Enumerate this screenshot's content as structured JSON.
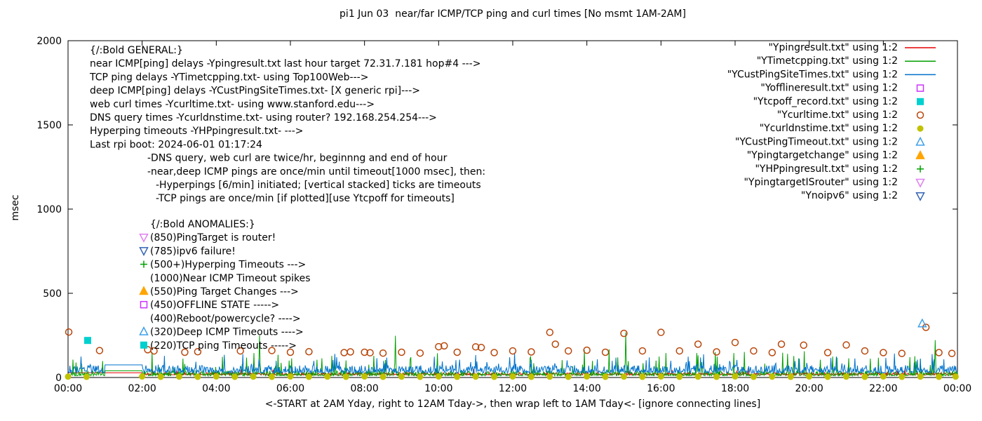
{
  "chart_data": {
    "type": "line",
    "title": "pi1 Jun 03  near/far ICMP/TCP ping and curl times [No msmt 1AM-2AM]",
    "xlabel": "<-START at 2AM Yday, right to 12AM Tday->, then wrap left to 1AM Tday<- [ignore connecting lines]",
    "ylabel": "msec",
    "ylim": [
      0,
      2000
    ],
    "y_ticks": [
      0,
      500,
      1000,
      1500,
      2000
    ],
    "x_tick_labels": [
      "00:00",
      "02:00",
      "04:00",
      "06:00",
      "08:00",
      "10:00",
      "12:00",
      "14:00",
      "16:00",
      "18:00",
      "20:00",
      "22:00",
      "00:00"
    ],
    "x_range_hours": [
      0,
      24
    ],
    "grid": false,
    "gap_hours": [
      1,
      2
    ],
    "line_series": [
      {
        "name": "Ypingresult",
        "color": "#e60000",
        "seed": 11,
        "base": 15,
        "noise": 15,
        "spike_p": 0.015,
        "spike_amp": 35,
        "gap_value": 28,
        "flat_until": 2,
        "spikes": []
      },
      {
        "name": "YTimetcpping",
        "color": "#00a000",
        "seed": 22,
        "base": 10,
        "noise": 30,
        "spike_p": 0.05,
        "spike_amp": 130,
        "gap_value": 40,
        "spikes": [
          [
            5.17,
            250
          ],
          [
            8.83,
            248
          ],
          [
            15.05,
            268
          ],
          [
            23.4,
            222
          ]
        ]
      },
      {
        "name": "YCustPingSiteTimes",
        "color": "#0072cc",
        "seed": 33,
        "base": 28,
        "noise": 45,
        "spike_p": 0.06,
        "spike_amp": 75,
        "gap_value": 75,
        "spikes": [
          [
            7.2,
            140
          ],
          [
            12.05,
            148
          ],
          [
            22.3,
            142
          ]
        ]
      }
    ],
    "point_series": [
      {
        "name": "Yofflineresult",
        "marker": "square-open",
        "color": "#cc33ff",
        "points": []
      },
      {
        "name": "Ytcpoff_record",
        "marker": "square-filled",
        "color": "#00d0d0",
        "points": [
          [
            0.53,
            220
          ]
        ]
      },
      {
        "name": "Ycurltime",
        "marker": "circle-open",
        "color": "#b8470b",
        "points": [
          [
            0.02,
            270
          ],
          [
            0.85,
            160
          ],
          [
            2.15,
            165
          ],
          [
            2.32,
            158
          ],
          [
            3.15,
            150
          ],
          [
            3.5,
            153
          ],
          [
            4.65,
            158
          ],
          [
            5.5,
            160
          ],
          [
            6.0,
            150
          ],
          [
            6.5,
            153
          ],
          [
            7.45,
            148
          ],
          [
            7.62,
            152
          ],
          [
            8.0,
            150
          ],
          [
            8.15,
            147
          ],
          [
            8.5,
            145
          ],
          [
            9.0,
            150
          ],
          [
            9.5,
            145
          ],
          [
            10.0,
            183
          ],
          [
            10.15,
            188
          ],
          [
            10.5,
            150
          ],
          [
            11.0,
            182
          ],
          [
            11.15,
            178
          ],
          [
            11.5,
            148
          ],
          [
            12.0,
            158
          ],
          [
            12.5,
            152
          ],
          [
            13.0,
            268
          ],
          [
            13.15,
            198
          ],
          [
            13.5,
            158
          ],
          [
            14.0,
            162
          ],
          [
            14.5,
            150
          ],
          [
            15.0,
            262
          ],
          [
            15.5,
            158
          ],
          [
            16.0,
            268
          ],
          [
            16.5,
            158
          ],
          [
            17.0,
            198
          ],
          [
            17.5,
            152
          ],
          [
            18.0,
            208
          ],
          [
            18.5,
            158
          ],
          [
            19.0,
            148
          ],
          [
            19.25,
            198
          ],
          [
            19.85,
            192
          ],
          [
            20.5,
            148
          ],
          [
            21.0,
            193
          ],
          [
            21.5,
            158
          ],
          [
            22.0,
            148
          ],
          [
            22.5,
            143
          ],
          [
            23.15,
            298
          ],
          [
            23.5,
            148
          ],
          [
            23.85,
            143
          ]
        ]
      },
      {
        "name": "Ycurldnstime",
        "marker": "circle-filled",
        "color": "#c0c200",
        "points": [
          [
            0,
            5
          ],
          [
            0.5,
            4
          ],
          [
            2,
            6
          ],
          [
            2.5,
            4
          ],
          [
            3,
            5
          ],
          [
            3.5,
            4
          ],
          [
            4,
            6
          ],
          [
            4.5,
            4
          ],
          [
            5,
            5
          ],
          [
            5.5,
            4
          ],
          [
            6,
            6
          ],
          [
            6.5,
            4
          ],
          [
            7,
            5
          ],
          [
            7.5,
            4
          ],
          [
            8,
            6
          ],
          [
            8.5,
            4
          ],
          [
            9,
            5
          ],
          [
            9.5,
            4
          ],
          [
            10,
            6
          ],
          [
            10.5,
            4
          ],
          [
            11,
            5
          ],
          [
            11.5,
            4
          ],
          [
            12,
            6
          ],
          [
            12.5,
            4
          ],
          [
            13,
            5
          ],
          [
            13.5,
            4
          ],
          [
            14,
            6
          ],
          [
            14.5,
            4
          ],
          [
            15,
            5
          ],
          [
            15.5,
            4
          ],
          [
            16,
            6
          ],
          [
            16.5,
            4
          ],
          [
            17,
            5
          ],
          [
            17.5,
            4
          ],
          [
            18,
            6
          ],
          [
            18.5,
            4
          ],
          [
            19,
            5
          ],
          [
            19.5,
            4
          ],
          [
            20,
            6
          ],
          [
            20.5,
            4
          ],
          [
            21,
            5
          ],
          [
            21.5,
            4
          ],
          [
            22,
            6
          ],
          [
            22.5,
            4
          ],
          [
            23,
            5
          ],
          [
            23.5,
            4
          ],
          [
            23.95,
            5
          ]
        ]
      },
      {
        "name": "YCustPingTimeout",
        "marker": "triangle-up-open",
        "color": "#3ea0e8",
        "points": [
          [
            23.05,
            320
          ]
        ]
      },
      {
        "name": "Ypingtargetchange",
        "marker": "triangle-up-filled",
        "color": "#ffa500",
        "points": []
      },
      {
        "name": "YHPpingresult",
        "marker": "plus",
        "color": "#00a000",
        "points": []
      },
      {
        "name": "YpingtargetISrouter",
        "marker": "triangle-down-open",
        "color": "#e080f0",
        "points": []
      },
      {
        "name": "Ynoipv6",
        "marker": "triangle-down-open",
        "color": "#3465b4",
        "points": []
      }
    ]
  },
  "legend": [
    {
      "label": "\"Ypingresult.txt\" using 1:2",
      "color": "#e60000",
      "sample": "line"
    },
    {
      "label": "\"YTimetcpping.txt\" using 1:2",
      "color": "#00a000",
      "sample": "line"
    },
    {
      "label": "\"YCustPingSiteTimes.txt\" using 1:2",
      "color": "#0072cc",
      "sample": "line"
    },
    {
      "label": "\"Yofflineresult.txt\" using 1:2",
      "color": "#cc33ff",
      "sample": "square-open"
    },
    {
      "label": "\"Ytcpoff_record.txt\" using 1:2",
      "color": "#00d0d0",
      "sample": "square-filled"
    },
    {
      "label": "\"Ycurltime.txt\" using 1:2",
      "color": "#b8470b",
      "sample": "circle-open"
    },
    {
      "label": "\"Ycurldnstime.txt\" using 1:2",
      "color": "#c0c200",
      "sample": "circle-filled"
    },
    {
      "label": "\"YCustPingTimeout.txt\" using 1:2",
      "color": "#3ea0e8",
      "sample": "triangle-up-open"
    },
    {
      "label": "\"Ypingtargetchange\" using 1:2",
      "color": "#ffa500",
      "sample": "triangle-up-filled"
    },
    {
      "label": "\"YHPpingresult.txt\" using 1:2",
      "color": "#00a000",
      "sample": "plus"
    },
    {
      "label": "\"YpingtargetISrouter\" using 1:2",
      "color": "#e080f0",
      "sample": "triangle-down-open"
    },
    {
      "label": "\"Ynoipv6\" using 1:2",
      "color": "#3465b4",
      "sample": "triangle-down-open"
    }
  ],
  "annotations": {
    "general": {
      "lines": [
        {
          "text": "{/:Bold GENERAL:}",
          "indent": 0
        },
        {
          "text": "near ICMP[ping] delays -Ypingresult.txt last hour target 72.31.7.181 hop#4 --->",
          "indent": 0
        },
        {
          "text": "TCP ping delays -YTimetcpping.txt- using Top100Web--->",
          "indent": 0
        },
        {
          "text": "deep ICMP[ping] delays -YCustPingSiteTimes.txt- [X generic rpi]--->",
          "indent": 0
        },
        {
          "text": "web curl times -Ycurltime.txt- using www.stanford.edu--->",
          "indent": 0
        },
        {
          "text": "DNS query times -Ycurldnstime.txt- using router? 192.168.254.254--->",
          "indent": 0
        },
        {
          "text": "Hyperping timeouts -YHPpingresult.txt- --->",
          "indent": 0
        },
        {
          "text": "Last rpi boot: 2024-06-01 01:17:24",
          "indent": 0
        },
        {
          "text": "-DNS query, web curl are twice/hr, beginnng and end of hour",
          "indent": 1
        },
        {
          "text": "-near,deep ICMP pings are once/min until timeout[1000 msec], then:",
          "indent": 1
        },
        {
          "text": "-Hyperpings [6/min] initiated; [vertical stacked] ticks are timeouts",
          "indent": 2
        },
        {
          "text": "-TCP pings are once/min [if plotted][use Ytcpoff for timeouts]",
          "indent": 2
        }
      ]
    },
    "anomalies": {
      "items": [
        {
          "text": "{/:Bold ANOMALIES:}",
          "marker": null,
          "color": null
        },
        {
          "text": "(850)PingTarget is router!",
          "marker": "triangle-down-open",
          "color": "#e080f0"
        },
        {
          "text": "(785)ipv6 failure!",
          "marker": "triangle-down-open",
          "color": "#3465b4"
        },
        {
          "text": "(500+)Hyperping Timeouts --->",
          "marker": "plus",
          "color": "#00a000"
        },
        {
          "text": "(1000)Near ICMP Timeout spikes",
          "marker": null,
          "color": null
        },
        {
          "text": "(550)Ping Target Changes --->",
          "marker": "triangle-up-filled",
          "color": "#ffa500"
        },
        {
          "text": "(450)OFFLINE STATE ----->",
          "marker": "square-open",
          "color": "#cc33ff"
        },
        {
          "text": "(400)Reboot/powercycle? ---->",
          "marker": null,
          "color": null
        },
        {
          "text": "(320)Deep ICMP Timeouts ---->",
          "marker": "triangle-up-open",
          "color": "#3ea0e8"
        },
        {
          "text": "(220)TCP ping Timeouts ----->",
          "marker": "square-filled",
          "color": "#00d0d0"
        }
      ]
    }
  }
}
